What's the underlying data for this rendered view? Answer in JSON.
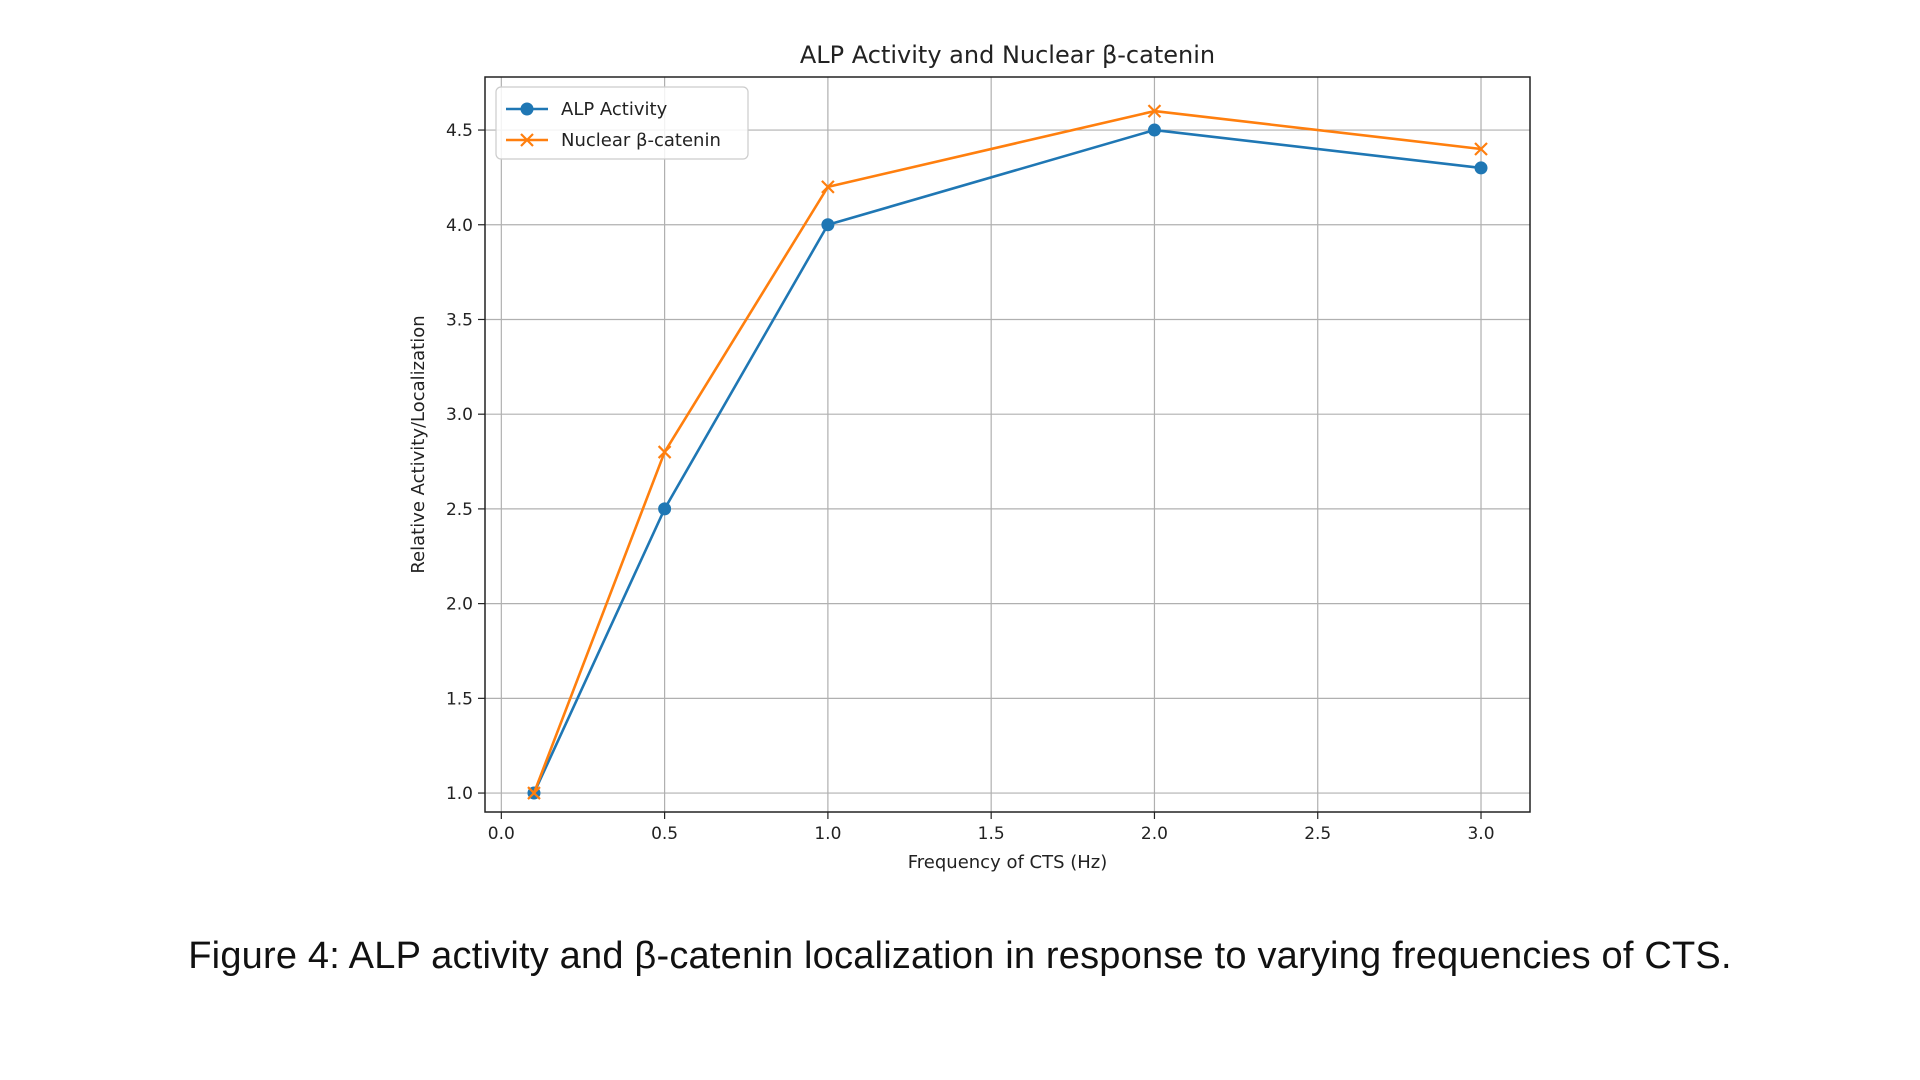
{
  "caption": "Figure 4: ALP activity and β-catenin localization in response to varying frequencies of CTS.",
  "chart_data": {
    "type": "line",
    "title": "ALP Activity and Nuclear β-catenin",
    "xlabel": "Frequency of CTS (Hz)",
    "ylabel": "Relative Activity/Localization",
    "xlim": [
      -0.05,
      3.15
    ],
    "ylim": [
      0.9,
      4.78
    ],
    "xticks": [
      0.0,
      0.5,
      1.0,
      1.5,
      2.0,
      2.5,
      3.0
    ],
    "xtick_labels": [
      "0.0",
      "0.5",
      "1.0",
      "1.5",
      "2.0",
      "2.5",
      "3.0"
    ],
    "yticks": [
      1.0,
      1.5,
      2.0,
      2.5,
      3.0,
      3.5,
      4.0,
      4.5
    ],
    "ytick_labels": [
      "1.0",
      "1.5",
      "2.0",
      "2.5",
      "3.0",
      "3.5",
      "4.0",
      "4.5"
    ],
    "grid": true,
    "legend_position": "top-left",
    "x": [
      0.1,
      0.5,
      1.0,
      2.0,
      3.0
    ],
    "series": [
      {
        "name": "ALP Activity",
        "values": [
          1.0,
          2.5,
          4.0,
          4.5,
          4.3
        ],
        "color": "#1f77b4",
        "marker": "circle"
      },
      {
        "name": "Nuclear β-catenin",
        "values": [
          1.0,
          2.8,
          4.2,
          4.6,
          4.4
        ],
        "color": "#ff7f0e",
        "marker": "x"
      }
    ]
  }
}
